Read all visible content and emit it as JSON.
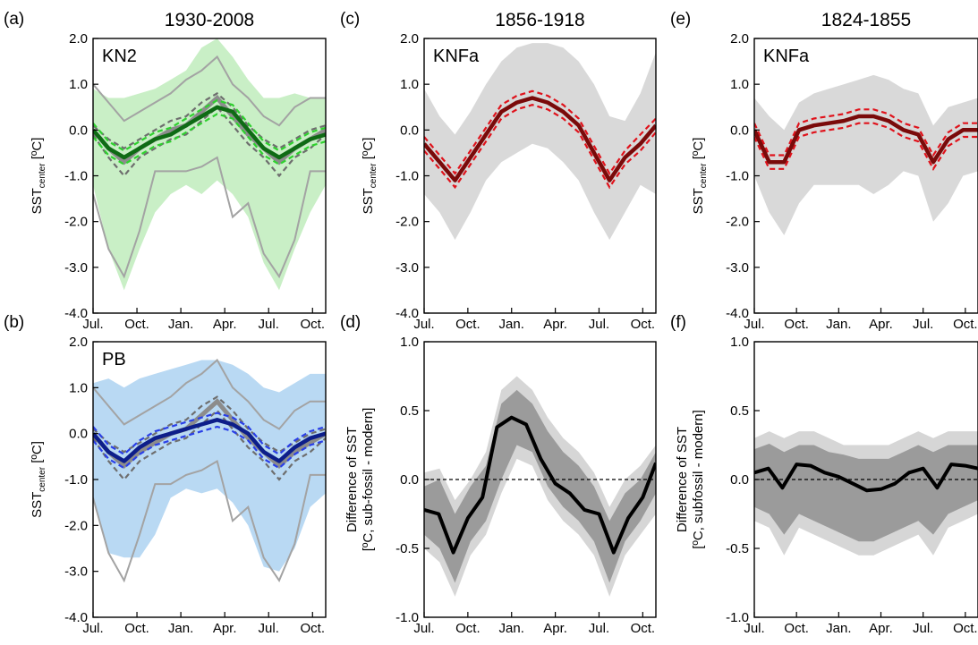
{
  "chart_data": [
    {
      "id": "a",
      "panel_label": "(a)",
      "title": "1930-2008",
      "series_label": "KN2",
      "type": "line",
      "ylim": [
        -4.0,
        2.0
      ],
      "yticks": [
        "2.0",
        "1.0",
        "0.0",
        "-1.0",
        "-2.0",
        "-3.0",
        "-4.0"
      ],
      "xticks": [
        "Jul.",
        "Oct.",
        "Jan.",
        "Apr.",
        "Jul.",
        "Oct."
      ],
      "ylabel_main": "SST",
      "ylabel_sub": "center",
      "ylabel_unit": " [ºC]",
      "colors": {
        "band": "#c9efc6",
        "main": "#0e6b14",
        "ci": "#2fd12f"
      },
      "band_upper": [
        0.9,
        0.7,
        0.7,
        0.8,
        0.9,
        1.1,
        1.3,
        1.8,
        2.0,
        1.6,
        1.1,
        0.7,
        0.7,
        0.8,
        0.7,
        0.7
      ],
      "band_lower": [
        -1.2,
        -2.6,
        -3.5,
        -2.6,
        -1.8,
        -1.4,
        -1.2,
        -1.4,
        -1.1,
        -1.4,
        -1.9,
        -2.9,
        -3.5,
        -2.6,
        -1.8,
        -1.2
      ],
      "grey_upper": [
        1.0,
        0.6,
        0.2,
        0.4,
        0.6,
        0.8,
        1.1,
        1.3,
        1.6,
        1.0,
        0.7,
        0.3,
        0.1,
        0.5,
        0.7,
        0.7
      ],
      "grey_lower": [
        -1.4,
        -2.6,
        -3.2,
        -2.2,
        -0.9,
        -0.9,
        -0.9,
        -0.8,
        -0.6,
        -1.9,
        -1.6,
        -2.7,
        -3.2,
        -2.4,
        -0.9,
        -0.9
      ],
      "grey_mean": [
        0.0,
        -0.4,
        -0.7,
        -0.4,
        -0.2,
        0.0,
        0.1,
        0.4,
        0.7,
        0.3,
        -0.1,
        -0.4,
        -0.7,
        -0.4,
        -0.2,
        0.0
      ],
      "grey_mean_upper": [
        0.1,
        -0.2,
        -0.4,
        -0.2,
        0.0,
        0.2,
        0.3,
        0.6,
        0.8,
        0.5,
        0.1,
        -0.2,
        -0.4,
        -0.2,
        0.0,
        0.1
      ],
      "grey_mean_lower": [
        -0.1,
        -0.6,
        -1.0,
        -0.6,
        -0.4,
        -0.2,
        -0.1,
        0.2,
        0.5,
        0.1,
        -0.3,
        -0.6,
        -1.0,
        -0.6,
        -0.4,
        -0.1
      ],
      "mean": [
        0.0,
        -0.4,
        -0.6,
        -0.4,
        -0.2,
        -0.1,
        0.1,
        0.3,
        0.5,
        0.4,
        0.0,
        -0.4,
        -0.6,
        -0.4,
        -0.2,
        -0.1
      ],
      "ci_upper": [
        0.15,
        -0.25,
        -0.45,
        -0.25,
        -0.05,
        0.05,
        0.25,
        0.45,
        0.65,
        0.55,
        0.15,
        -0.25,
        -0.45,
        -0.25,
        -0.05,
        0.05
      ],
      "ci_lower": [
        -0.15,
        -0.55,
        -0.75,
        -0.55,
        -0.35,
        -0.25,
        -0.05,
        0.15,
        0.35,
        0.25,
        -0.15,
        -0.55,
        -0.75,
        -0.55,
        -0.35,
        -0.25
      ]
    },
    {
      "id": "b",
      "panel_label": "(b)",
      "title": "",
      "series_label": "PB",
      "type": "line",
      "ylim": [
        -4.0,
        2.0
      ],
      "yticks": [
        "2.0",
        "1.0",
        "0.0",
        "-1.0",
        "-2.0",
        "-3.0",
        "-4.0"
      ],
      "xticks": [
        "Jul.",
        "Oct.",
        "Jan.",
        "Apr.",
        "Jul.",
        "Oct."
      ],
      "ylabel_main": "SST",
      "ylabel_sub": "center",
      "ylabel_unit": " [ºC]",
      "colors": {
        "band": "#b9d9f3",
        "main": "#0d1e8a",
        "ci": "#2a3fe8"
      },
      "band_upper": [
        1.1,
        1.2,
        1.0,
        1.2,
        1.3,
        1.4,
        1.5,
        1.6,
        1.6,
        1.5,
        1.3,
        1.0,
        0.9,
        1.1,
        1.3,
        1.3
      ],
      "band_lower": [
        -1.4,
        -2.6,
        -2.7,
        -2.7,
        -2.2,
        -1.4,
        -1.2,
        -1.3,
        -1.2,
        -1.5,
        -2.0,
        -2.9,
        -3.0,
        -2.5,
        -1.6,
        -1.3
      ],
      "grey_upper": [
        1.0,
        0.6,
        0.2,
        0.4,
        0.6,
        0.8,
        1.1,
        1.3,
        1.6,
        1.0,
        0.7,
        0.3,
        0.1,
        0.5,
        0.7,
        0.7
      ],
      "grey_lower": [
        -1.4,
        -2.6,
        -3.2,
        -2.2,
        -1.1,
        -1.1,
        -0.9,
        -0.8,
        -0.6,
        -1.9,
        -1.6,
        -2.7,
        -3.2,
        -2.4,
        -0.9,
        -0.9
      ],
      "grey_mean": [
        0.0,
        -0.4,
        -0.7,
        -0.4,
        -0.2,
        0.0,
        0.1,
        0.4,
        0.7,
        0.3,
        -0.1,
        -0.4,
        -0.7,
        -0.4,
        -0.2,
        0.0
      ],
      "grey_mean_upper": [
        0.1,
        -0.2,
        -0.4,
        -0.2,
        0.0,
        0.2,
        0.3,
        0.6,
        0.8,
        0.5,
        0.1,
        -0.2,
        -0.4,
        -0.2,
        0.0,
        0.1
      ],
      "grey_mean_lower": [
        -0.1,
        -0.6,
        -1.0,
        -0.6,
        -0.4,
        -0.2,
        -0.1,
        0.2,
        0.5,
        0.1,
        -0.3,
        -0.6,
        -1.0,
        -0.6,
        -0.4,
        -0.1
      ],
      "mean": [
        0.0,
        -0.4,
        -0.6,
        -0.3,
        -0.1,
        0.0,
        0.1,
        0.2,
        0.3,
        0.2,
        0.0,
        -0.4,
        -0.6,
        -0.3,
        -0.1,
        0.0
      ],
      "ci_upper": [
        0.15,
        -0.25,
        -0.45,
        -0.15,
        0.05,
        0.15,
        0.25,
        0.35,
        0.45,
        0.35,
        0.15,
        -0.25,
        -0.45,
        -0.15,
        0.05,
        0.15
      ],
      "ci_lower": [
        -0.15,
        -0.55,
        -0.75,
        -0.45,
        -0.25,
        -0.15,
        -0.05,
        0.05,
        0.15,
        0.05,
        -0.15,
        -0.55,
        -0.75,
        -0.45,
        -0.25,
        -0.15
      ]
    },
    {
      "id": "c",
      "panel_label": "(c)",
      "title": "1856-1918",
      "series_label": "KNFa",
      "type": "line",
      "ylim": [
        -4.0,
        2.0
      ],
      "yticks": [
        "2.0",
        "1.0",
        "0.0",
        "-1.0",
        "-2.0",
        "-3.0",
        "-4.0"
      ],
      "xticks": [
        "Jul.",
        "Oct.",
        "Jan.",
        "Apr.",
        "Jul.",
        "Oct."
      ],
      "ylabel_main": "SST",
      "ylabel_sub": "center",
      "ylabel_unit": " [ºC]",
      "colors": {
        "band": "#d9d9d9",
        "main": "#7a0a0a",
        "ci": "#e0121b"
      },
      "band_upper": [
        0.9,
        0.3,
        -0.1,
        0.4,
        1.0,
        1.5,
        1.8,
        1.9,
        1.9,
        1.8,
        1.5,
        1.0,
        0.3,
        0.2,
        0.8,
        1.7
      ],
      "band_lower": [
        -1.4,
        -1.8,
        -2.4,
        -1.8,
        -1.1,
        -0.7,
        -0.5,
        -0.3,
        -0.4,
        -0.7,
        -1.1,
        -1.8,
        -2.4,
        -1.8,
        -1.2,
        -1.4
      ],
      "mean": [
        -0.3,
        -0.7,
        -1.1,
        -0.6,
        -0.1,
        0.4,
        0.6,
        0.7,
        0.6,
        0.4,
        0.1,
        -0.5,
        -1.1,
        -0.6,
        -0.3,
        0.1
      ],
      "ci_upper": [
        -0.15,
        -0.55,
        -0.95,
        -0.45,
        0.05,
        0.55,
        0.75,
        0.85,
        0.75,
        0.55,
        0.25,
        -0.35,
        -0.95,
        -0.45,
        -0.1,
        0.25
      ],
      "ci_lower": [
        -0.45,
        -0.85,
        -1.25,
        -0.75,
        -0.25,
        0.25,
        0.45,
        0.55,
        0.45,
        0.25,
        -0.05,
        -0.65,
        -1.25,
        -0.75,
        -0.45,
        -0.05
      ]
    },
    {
      "id": "e",
      "panel_label": "(e)",
      "title": "1824-1855",
      "series_label": "KNFa",
      "type": "line",
      "ylim": [
        -4.0,
        2.0
      ],
      "yticks": [
        "2.0",
        "1.0",
        "0.0",
        "-1.0",
        "-2.0",
        "-3.0",
        "-4.0"
      ],
      "xticks": [
        "Jul.",
        "Oct.",
        "Jan.",
        "Apr.",
        "Jul.",
        "Oct."
      ],
      "ylabel_main": "SST",
      "ylabel_sub": "center",
      "ylabel_unit": " [ºC]",
      "colors": {
        "band": "#d9d9d9",
        "main": "#7a0a0a",
        "ci": "#e0121b"
      },
      "band_upper": [
        0.7,
        0.3,
        0.0,
        0.6,
        0.8,
        0.9,
        1.0,
        1.1,
        1.2,
        1.1,
        0.9,
        0.8,
        0.1,
        0.5,
        0.6,
        0.7
      ],
      "band_lower": [
        -1.0,
        -1.8,
        -2.3,
        -1.6,
        -1.2,
        -1.2,
        -1.2,
        -1.2,
        -1.4,
        -1.2,
        -0.9,
        -1.0,
        -2.0,
        -1.6,
        -1.0,
        -0.9
      ],
      "mean": [
        0.0,
        -0.7,
        -0.7,
        0.0,
        0.1,
        0.15,
        0.2,
        0.3,
        0.3,
        0.2,
        0.0,
        -0.1,
        -0.7,
        -0.2,
        0.0,
        0.0
      ],
      "ci_upper": [
        0.15,
        -0.55,
        -0.55,
        0.15,
        0.25,
        0.3,
        0.35,
        0.45,
        0.45,
        0.35,
        0.15,
        0.05,
        -0.55,
        -0.05,
        0.15,
        0.15
      ],
      "ci_lower": [
        -0.15,
        -0.85,
        -0.85,
        -0.15,
        -0.05,
        0.0,
        0.05,
        0.15,
        0.15,
        0.05,
        -0.15,
        -0.25,
        -0.85,
        -0.35,
        -0.15,
        -0.15
      ]
    },
    {
      "id": "d",
      "panel_label": "(d)",
      "title": "",
      "type": "line",
      "ylim": [
        -1.0,
        1.0
      ],
      "yticks": [
        "1.0",
        "0.5",
        "0.0",
        "-0.5",
        "-1.0"
      ],
      "xticks": [
        "Jul.",
        "Oct.",
        "Jan.",
        "Apr.",
        "Jul.",
        "Oct."
      ],
      "ylabel_line1": "Difference of SST",
      "ylabel_line2": "[ºC, sub-fossil - modern]",
      "colors": {
        "band_outer": "#d6d6d6",
        "band_inner": "#9b9b9b",
        "main": "#000000"
      },
      "outer_upper": [
        0.05,
        0.08,
        -0.15,
        0.0,
        0.2,
        0.65,
        0.75,
        0.65,
        0.45,
        0.3,
        0.2,
        0.05,
        -0.2,
        0.0,
        0.1,
        0.25
      ],
      "outer_lower": [
        -0.5,
        -0.6,
        -0.85,
        -0.55,
        -0.4,
        -0.1,
        0.15,
        0.1,
        -0.15,
        -0.3,
        -0.4,
        -0.55,
        -0.85,
        -0.55,
        -0.4,
        -0.25
      ],
      "inner_upper": [
        -0.05,
        0.0,
        -0.25,
        -0.05,
        0.1,
        0.55,
        0.65,
        0.55,
        0.35,
        0.2,
        0.1,
        -0.05,
        -0.3,
        -0.1,
        0.0,
        0.2
      ],
      "inner_lower": [
        -0.4,
        -0.5,
        -0.75,
        -0.45,
        -0.3,
        0.0,
        0.25,
        0.2,
        -0.05,
        -0.2,
        -0.3,
        -0.45,
        -0.75,
        -0.45,
        -0.3,
        -0.1
      ],
      "mean": [
        -0.22,
        -0.25,
        -0.53,
        -0.28,
        -0.13,
        0.38,
        0.45,
        0.4,
        0.15,
        -0.03,
        -0.1,
        -0.22,
        -0.25,
        -0.53,
        -0.28,
        -0.13,
        0.12
      ],
      "mean_x": [
        0,
        0.5,
        1,
        1.5,
        2,
        2.5,
        3,
        3.5,
        4,
        4.5,
        5,
        5.5,
        6,
        6.5,
        7,
        7.5,
        7.95
      ]
    },
    {
      "id": "f",
      "panel_label": "(f)",
      "title": "",
      "type": "line",
      "ylim": [
        -1.0,
        1.0
      ],
      "yticks": [
        "1.0",
        "0.5",
        "0.0",
        "-0.5",
        "-1.0"
      ],
      "xticks": [
        "Jul.",
        "Oct.",
        "Jan.",
        "Apr.",
        "Jul.",
        "Oct."
      ],
      "ylabel_line1": "Difference of SST",
      "ylabel_line2": "[ºC, subfossil - modern]",
      "colors": {
        "band_outer": "#d6d6d6",
        "band_inner": "#9b9b9b",
        "main": "#000000"
      },
      "outer_upper": [
        0.3,
        0.35,
        0.3,
        0.35,
        0.35,
        0.3,
        0.25,
        0.25,
        0.25,
        0.25,
        0.3,
        0.35,
        0.3,
        0.35,
        0.35,
        0.35
      ],
      "outer_lower": [
        -0.3,
        -0.35,
        -0.55,
        -0.35,
        -0.4,
        -0.45,
        -0.5,
        -0.55,
        -0.55,
        -0.5,
        -0.45,
        -0.4,
        -0.55,
        -0.35,
        -0.3,
        -0.25
      ],
      "inner_upper": [
        0.22,
        0.26,
        0.2,
        0.25,
        0.25,
        0.2,
        0.18,
        0.15,
        0.15,
        0.15,
        0.2,
        0.25,
        0.2,
        0.25,
        0.25,
        0.25
      ],
      "inner_lower": [
        -0.2,
        -0.25,
        -0.4,
        -0.25,
        -0.3,
        -0.35,
        -0.4,
        -0.45,
        -0.45,
        -0.4,
        -0.35,
        -0.3,
        -0.4,
        -0.25,
        -0.2,
        -0.15
      ],
      "mean": [
        0.05,
        0.08,
        -0.06,
        0.11,
        0.1,
        0.05,
        0.02,
        -0.03,
        -0.08,
        -0.07,
        -0.03,
        0.05,
        0.08,
        -0.06,
        0.11,
        0.1,
        0.08
      ],
      "mean_x": [
        0,
        0.5,
        1,
        1.5,
        2,
        2.5,
        3,
        3.5,
        4,
        4.5,
        5,
        5.5,
        6,
        6.5,
        7,
        7.5,
        7.95
      ]
    }
  ]
}
